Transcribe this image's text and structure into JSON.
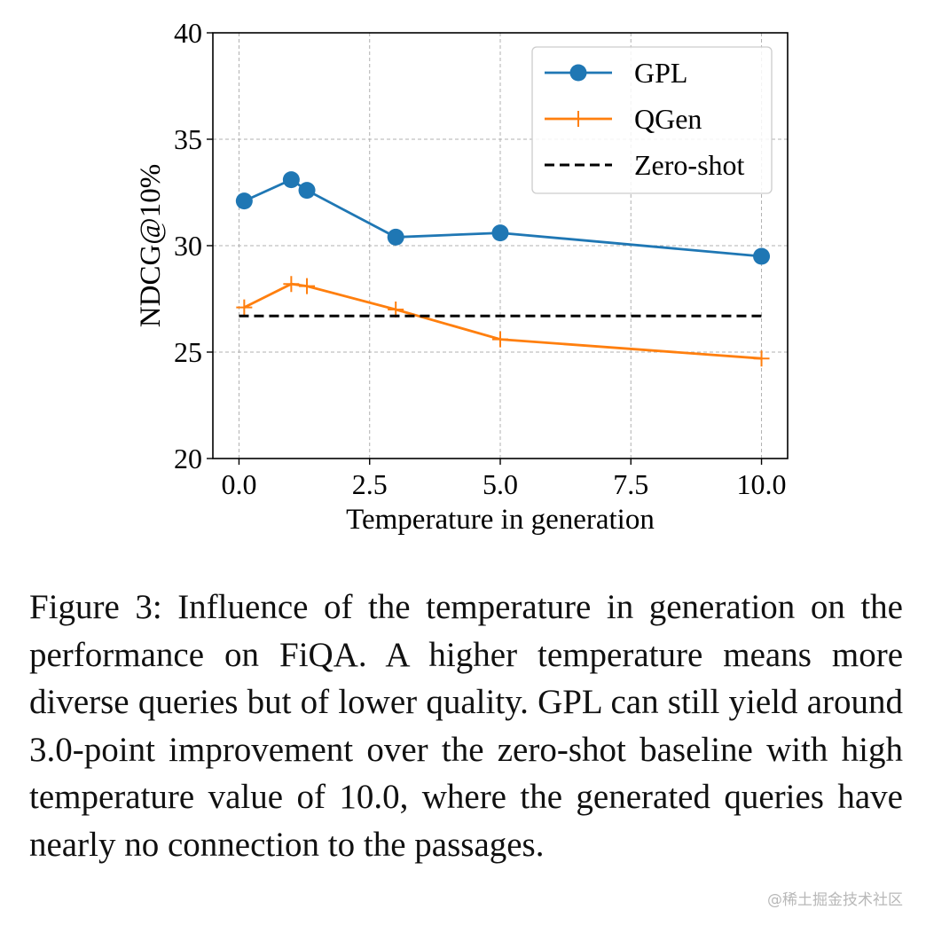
{
  "chart_data": {
    "type": "line",
    "xlabel": "Temperature in generation",
    "ylabel": "NDCG@10%",
    "xlim": [
      -0.5,
      10.5
    ],
    "ylim": [
      20,
      40
    ],
    "xticks": [
      0.0,
      2.5,
      5.0,
      7.5,
      10.0
    ],
    "xtick_labels": [
      "0.0",
      "2.5",
      "5.0",
      "7.5",
      "10.0"
    ],
    "yticks": [
      20,
      25,
      30,
      35,
      40
    ],
    "ytick_labels": [
      "20",
      "25",
      "30",
      "35",
      "40"
    ],
    "grid": true,
    "legend_position": "top-right",
    "series": [
      {
        "name": "GPL",
        "color": "#1f77b4",
        "marker": "circle",
        "style": "solid",
        "x": [
          0.1,
          1.0,
          1.3,
          3.0,
          5.0,
          10.0
        ],
        "y": [
          32.1,
          33.1,
          32.6,
          30.4,
          30.6,
          29.5
        ]
      },
      {
        "name": "QGen",
        "color": "#ff7f0e",
        "marker": "plus",
        "style": "solid",
        "x": [
          0.1,
          1.0,
          1.3,
          3.0,
          5.0,
          10.0
        ],
        "y": [
          27.1,
          28.2,
          28.1,
          27.0,
          25.6,
          24.7
        ]
      },
      {
        "name": "Zero-shot",
        "color": "#000000",
        "marker": "none",
        "style": "dashed",
        "x": [
          0.0,
          10.0
        ],
        "y": [
          26.7,
          26.7
        ]
      }
    ]
  },
  "caption": "Figure 3: Influence of the temperature in generation on the performance on FiQA. A higher temperature means more diverse queries but of lower quality. GPL can still yield around 3.0-point improvement over the zero-shot baseline with high temperature value of 10.0, where the generated queries have nearly no connection to the passages.",
  "watermark": "@稀土掘金技术社区"
}
